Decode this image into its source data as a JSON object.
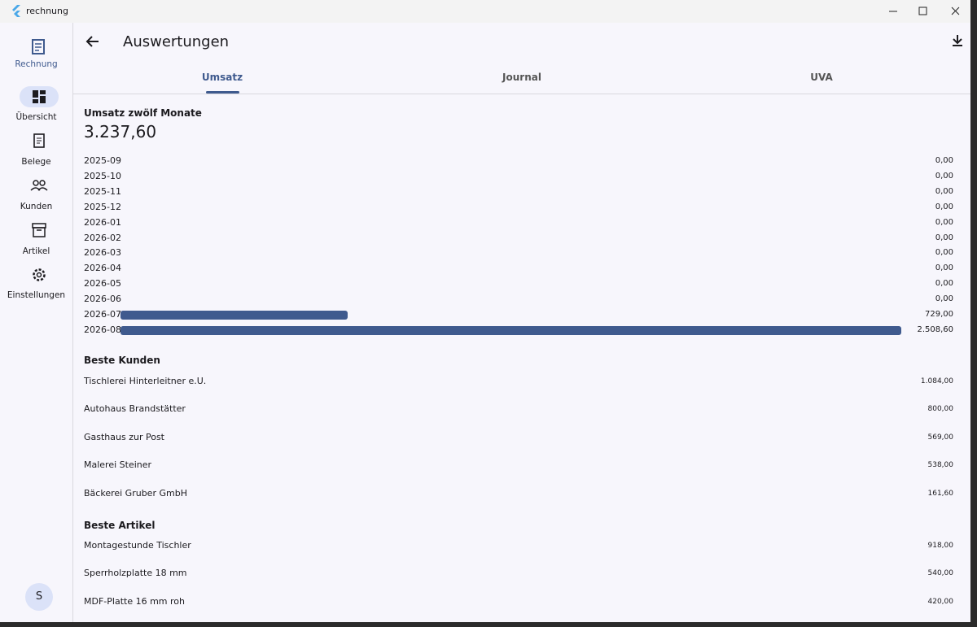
{
  "window": {
    "title": "rechnung"
  },
  "nav": {
    "brand": "Rechnung",
    "items": [
      "Übersicht",
      "Belege",
      "Kunden",
      "Artikel",
      "Einstellungen"
    ],
    "avatar": "S"
  },
  "header": {
    "title": "Auswertungen"
  },
  "tabs": [
    "Umsatz",
    "Journal",
    "UVA"
  ],
  "revenue": {
    "title": "Umsatz zwölf Monate",
    "total": "3.237,60",
    "months": [
      "2025-09",
      "2025-10",
      "2025-11",
      "2025-12",
      "2026-01",
      "2026-02",
      "2026-03",
      "2026-04",
      "2026-05",
      "2026-06",
      "2026-07",
      "2026-08"
    ],
    "values": [
      0,
      0,
      0,
      0,
      0,
      0,
      0,
      0,
      0,
      0,
      729,
      2508.6
    ],
    "value_labels": [
      "0,00",
      "0,00",
      "0,00",
      "0,00",
      "0,00",
      "0,00",
      "0,00",
      "0,00",
      "0,00",
      "0,00",
      "729,00",
      "2.508,60"
    ],
    "color": "#3f5a8e"
  },
  "top_customers": {
    "title": "Beste Kunden",
    "rows": [
      {
        "name": "Tischlerei Hinterleitner e.U.",
        "amount": "1.084,00"
      },
      {
        "name": "Autohaus Brandstätter",
        "amount": "800,00"
      },
      {
        "name": "Gasthaus zur Post",
        "amount": "569,00"
      },
      {
        "name": "Malerei Steiner",
        "amount": "538,00"
      },
      {
        "name": "Bäckerei Gruber GmbH",
        "amount": "161,60"
      }
    ]
  },
  "top_articles": {
    "title": "Beste Artikel",
    "rows": [
      {
        "name": "Montagestunde Tischler",
        "amount": "918,00"
      },
      {
        "name": "Sperrholzplatte 18 mm",
        "amount": "540,00"
      },
      {
        "name": "MDF-Platte 16 mm roh",
        "amount": "420,00"
      }
    ]
  }
}
